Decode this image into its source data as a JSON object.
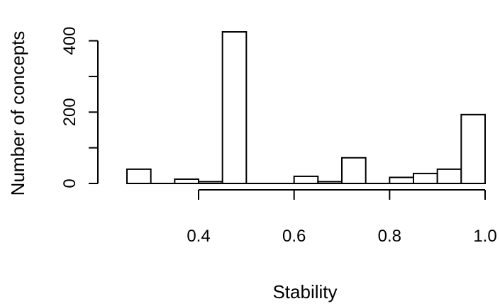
{
  "chart_data": {
    "type": "bar",
    "subtype": "histogram",
    "xlabel": "Stability",
    "ylabel": "Number of concepts",
    "title": "",
    "bins": [
      {
        "x0": 0.25,
        "x1": 0.3,
        "count": 40
      },
      {
        "x0": 0.3,
        "x1": 0.35,
        "count": 0
      },
      {
        "x0": 0.35,
        "x1": 0.4,
        "count": 12
      },
      {
        "x0": 0.4,
        "x1": 0.45,
        "count": 5
      },
      {
        "x0": 0.45,
        "x1": 0.5,
        "count": 425
      },
      {
        "x0": 0.5,
        "x1": 0.55,
        "count": 0
      },
      {
        "x0": 0.55,
        "x1": 0.6,
        "count": 0
      },
      {
        "x0": 0.6,
        "x1": 0.65,
        "count": 20
      },
      {
        "x0": 0.65,
        "x1": 0.7,
        "count": 5
      },
      {
        "x0": 0.7,
        "x1": 0.75,
        "count": 72
      },
      {
        "x0": 0.75,
        "x1": 0.8,
        "count": 0
      },
      {
        "x0": 0.8,
        "x1": 0.85,
        "count": 17
      },
      {
        "x0": 0.85,
        "x1": 0.9,
        "count": 28
      },
      {
        "x0": 0.9,
        "x1": 0.95,
        "count": 40
      },
      {
        "x0": 0.95,
        "x1": 1.0,
        "count": 193
      }
    ],
    "x_ticks": [
      {
        "value": 0.4,
        "label": "0.4"
      },
      {
        "value": 0.6,
        "label": "0.6"
      },
      {
        "value": 0.8,
        "label": "0.8"
      },
      {
        "value": 1.0,
        "label": "1.0"
      }
    ],
    "y_ticks": [
      {
        "value": 0,
        "label": "0"
      },
      {
        "value": 100,
        "label": ""
      },
      {
        "value": 200,
        "label": "200"
      },
      {
        "value": 300,
        "label": ""
      },
      {
        "value": 400,
        "label": "400"
      }
    ],
    "xlim": [
      0.25,
      1.0
    ],
    "ylim": [
      0,
      425
    ],
    "grid": false,
    "legend": "none",
    "bar_fill": "#ffffff",
    "bar_stroke": "#000000"
  }
}
